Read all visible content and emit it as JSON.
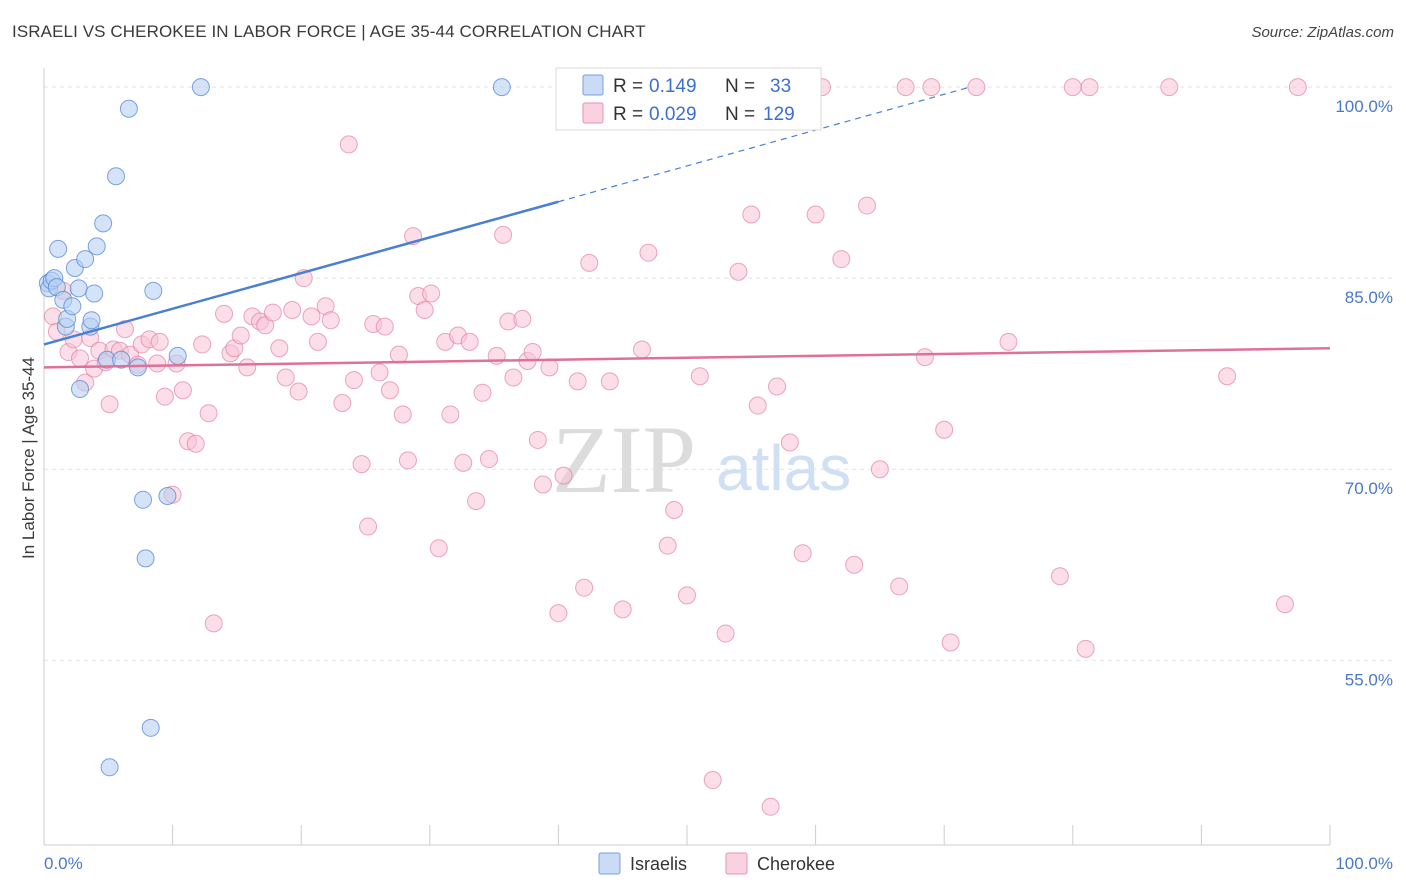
{
  "header": {
    "title": "ISRAELI VS CHEROKEE IN LABOR FORCE | AGE 35-44 CORRELATION CHART",
    "source": "Source: ZipAtlas.com"
  },
  "watermark": {
    "zip": "ZIP",
    "atlas": "atlas"
  },
  "colors": {
    "israelis": "#4a7fd4",
    "israelis_fill": "#b8d0f2",
    "cherokee": "#e0709a",
    "cherokee_fill": "#f7c3d4",
    "grid": "#e4e4e4",
    "axis_tick": "#4a78c8"
  },
  "legend": {
    "israelis": {
      "r_label": "R =",
      "r_value": "0.149",
      "n_label": "N =",
      "n_value": "33"
    },
    "cherokee": {
      "r_label": "R =",
      "r_value": "0.029",
      "n_label": "N =",
      "n_value": "129"
    }
  },
  "bottom_legend": {
    "israelis": "Israelis",
    "cherokee": "Cherokee"
  },
  "chart_data": {
    "type": "scatter",
    "title": "ISRAELI VS CHEROKEE IN LABOR FORCE | AGE 35-44 CORRELATION CHART",
    "xlabel": "",
    "ylabel": "In Labor Force | Age 35-44",
    "xlim": [
      0,
      100
    ],
    "ylim": [
      40.5,
      101.5
    ],
    "x_tick_labels": [
      "0.0%",
      "100.0%"
    ],
    "y_ticks": [
      55,
      70,
      85,
      100
    ],
    "y_tick_labels": [
      "55.0%",
      "70.0%",
      "85.0%",
      "100.0%"
    ],
    "series": [
      {
        "name": "Israelis",
        "R": 0.149,
        "N": 33,
        "trend": {
          "x0": 0,
          "y0": 79.8,
          "x1": 40,
          "y1": 91.0,
          "x_dash_end": 72,
          "y_dash_end": 100.0
        },
        "points": [
          [
            0.3,
            84.6
          ],
          [
            0.4,
            84.2
          ],
          [
            0.6,
            84.8
          ],
          [
            0.8,
            85.0
          ],
          [
            1.0,
            84.3
          ],
          [
            1.1,
            87.3
          ],
          [
            1.5,
            83.3
          ],
          [
            1.7,
            81.2
          ],
          [
            1.8,
            81.8
          ],
          [
            2.2,
            82.8
          ],
          [
            2.4,
            85.8
          ],
          [
            2.7,
            84.2
          ],
          [
            2.8,
            76.3
          ],
          [
            3.2,
            86.5
          ],
          [
            3.6,
            81.2
          ],
          [
            3.7,
            81.7
          ],
          [
            3.9,
            83.8
          ],
          [
            4.1,
            87.5
          ],
          [
            4.6,
            89.3
          ],
          [
            4.9,
            78.6
          ],
          [
            5.6,
            93.0
          ],
          [
            6.0,
            78.6
          ],
          [
            6.6,
            98.3
          ],
          [
            7.3,
            78.0
          ],
          [
            7.7,
            67.6
          ],
          [
            7.9,
            63.0
          ],
          [
            8.3,
            49.7
          ],
          [
            8.5,
            84.0
          ],
          [
            9.6,
            67.9
          ],
          [
            10.4,
            78.9
          ],
          [
            12.2,
            100.0
          ],
          [
            35.6,
            100.0
          ],
          [
            5.1,
            46.6
          ]
        ]
      },
      {
        "name": "Cherokee",
        "R": 0.029,
        "N": 129,
        "trend": {
          "x0": 0,
          "y0": 78.0,
          "x1": 100,
          "y1": 79.5
        },
        "points": [
          [
            0.7,
            82.0
          ],
          [
            1.0,
            80.8
          ],
          [
            1.5,
            84.0
          ],
          [
            1.9,
            79.2
          ],
          [
            2.3,
            80.2
          ],
          [
            2.8,
            78.7
          ],
          [
            3.2,
            76.8
          ],
          [
            3.6,
            80.3
          ],
          [
            3.9,
            77.9
          ],
          [
            4.3,
            79.3
          ],
          [
            4.8,
            78.4
          ],
          [
            5.1,
            75.1
          ],
          [
            5.4,
            79.4
          ],
          [
            5.9,
            79.3
          ],
          [
            6.3,
            81.0
          ],
          [
            6.7,
            79.0
          ],
          [
            7.3,
            78.2
          ],
          [
            7.6,
            79.8
          ],
          [
            8.2,
            80.2
          ],
          [
            8.8,
            78.3
          ],
          [
            9.0,
            80.0
          ],
          [
            9.4,
            75.7
          ],
          [
            10.0,
            68.0
          ],
          [
            10.3,
            78.3
          ],
          [
            10.8,
            76.2
          ],
          [
            11.2,
            72.2
          ],
          [
            11.8,
            72.0
          ],
          [
            12.3,
            79.8
          ],
          [
            12.8,
            74.4
          ],
          [
            13.2,
            57.9
          ],
          [
            14.0,
            82.2
          ],
          [
            14.5,
            79.1
          ],
          [
            14.8,
            79.5
          ],
          [
            15.3,
            80.5
          ],
          [
            15.8,
            78.0
          ],
          [
            16.2,
            82.0
          ],
          [
            16.8,
            81.6
          ],
          [
            17.2,
            81.3
          ],
          [
            17.8,
            82.3
          ],
          [
            18.3,
            79.5
          ],
          [
            18.8,
            77.2
          ],
          [
            19.3,
            82.5
          ],
          [
            19.8,
            76.1
          ],
          [
            20.2,
            85.0
          ],
          [
            20.8,
            82.0
          ],
          [
            21.3,
            80.0
          ],
          [
            21.9,
            82.8
          ],
          [
            22.3,
            81.7
          ],
          [
            23.2,
            75.2
          ],
          [
            23.7,
            95.5
          ],
          [
            24.1,
            77.0
          ],
          [
            24.7,
            70.4
          ],
          [
            25.2,
            65.5
          ],
          [
            25.6,
            81.4
          ],
          [
            26.1,
            77.6
          ],
          [
            26.5,
            81.2
          ],
          [
            26.9,
            76.2
          ],
          [
            27.6,
            79.0
          ],
          [
            27.9,
            74.3
          ],
          [
            28.3,
            70.7
          ],
          [
            28.7,
            88.3
          ],
          [
            29.1,
            83.6
          ],
          [
            29.6,
            82.5
          ],
          [
            30.1,
            83.8
          ],
          [
            30.7,
            63.8
          ],
          [
            31.2,
            80.0
          ],
          [
            31.6,
            74.3
          ],
          [
            32.2,
            80.5
          ],
          [
            32.6,
            70.5
          ],
          [
            33.1,
            80.0
          ],
          [
            33.6,
            67.5
          ],
          [
            34.1,
            76.0
          ],
          [
            34.6,
            70.8
          ],
          [
            35.2,
            78.9
          ],
          [
            35.7,
            88.4
          ],
          [
            36.1,
            81.6
          ],
          [
            36.5,
            77.2
          ],
          [
            37.2,
            81.8
          ],
          [
            37.6,
            78.5
          ],
          [
            38.0,
            79.2
          ],
          [
            38.4,
            72.3
          ],
          [
            38.8,
            68.8
          ],
          [
            39.3,
            78.0
          ],
          [
            40.0,
            58.7
          ],
          [
            40.4,
            69.5
          ],
          [
            41.5,
            76.9
          ],
          [
            42.0,
            60.7
          ],
          [
            42.4,
            86.2
          ],
          [
            44.0,
            76.9
          ],
          [
            45.0,
            59.0
          ],
          [
            46.5,
            79.4
          ],
          [
            47.0,
            87.0
          ],
          [
            47.5,
            100.0
          ],
          [
            48.5,
            64.0
          ],
          [
            49.0,
            66.8
          ],
          [
            50.0,
            60.1
          ],
          [
            51.0,
            77.3
          ],
          [
            52.0,
            45.6
          ],
          [
            53.0,
            57.1
          ],
          [
            54.0,
            85.5
          ],
          [
            55.0,
            90.0
          ],
          [
            55.5,
            75.0
          ],
          [
            57.0,
            76.5
          ],
          [
            58.0,
            72.1
          ],
          [
            59.0,
            63.4
          ],
          [
            60.0,
            90.0
          ],
          [
            60.5,
            100.0
          ],
          [
            62.0,
            86.5
          ],
          [
            63.0,
            62.5
          ],
          [
            64.0,
            90.7
          ],
          [
            65.0,
            70.0
          ],
          [
            66.5,
            60.8
          ],
          [
            67.0,
            100.0
          ],
          [
            68.5,
            78.8
          ],
          [
            69.0,
            100.0
          ],
          [
            70.0,
            73.1
          ],
          [
            70.5,
            56.4
          ],
          [
            72.5,
            100.0
          ],
          [
            75.0,
            80.0
          ],
          [
            79.0,
            61.6
          ],
          [
            80.0,
            100.0
          ],
          [
            81.0,
            55.9
          ],
          [
            87.5,
            100.0
          ],
          [
            92.0,
            77.3
          ],
          [
            96.5,
            59.4
          ],
          [
            97.5,
            100.0
          ],
          [
            56.5,
            43.5
          ],
          [
            81.3,
            100.0
          ],
          [
            55.8,
            100.0
          ]
        ]
      }
    ]
  }
}
